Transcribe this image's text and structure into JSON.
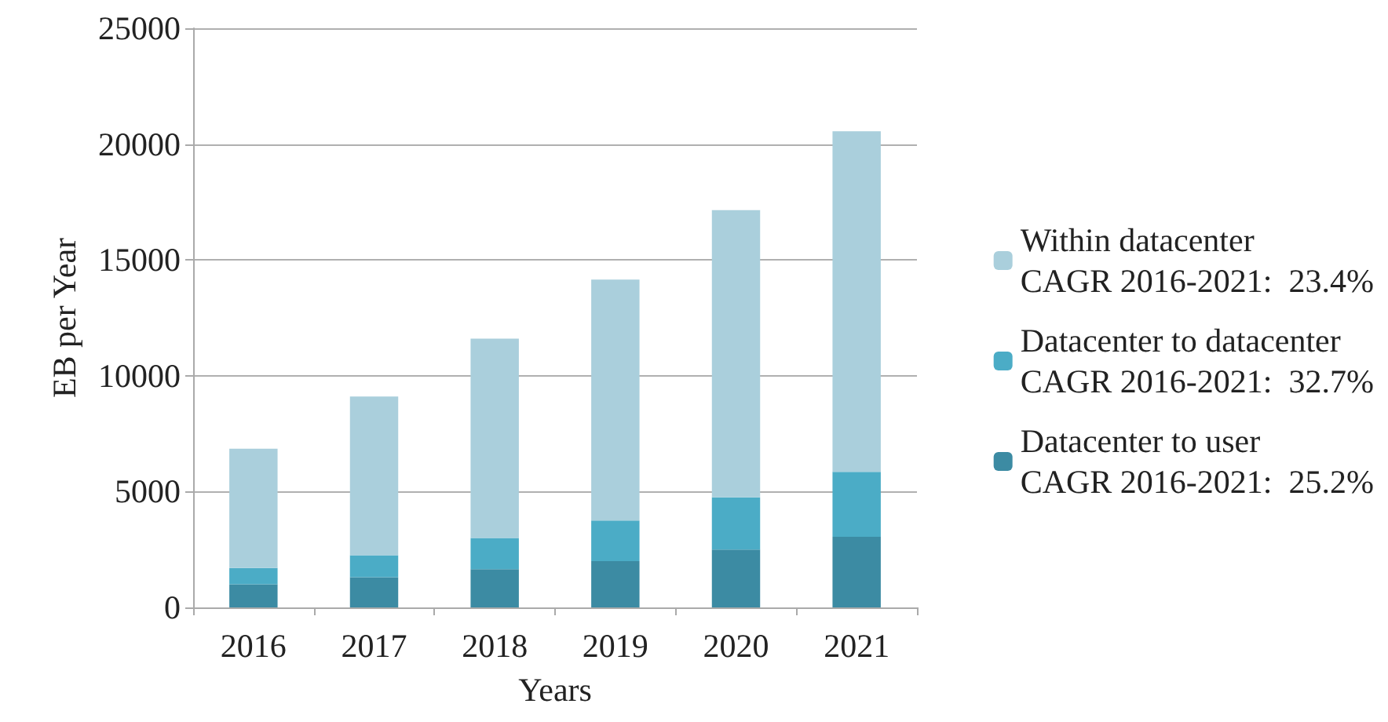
{
  "chart_data": {
    "type": "bar",
    "stacked": true,
    "xlabel": "Years",
    "ylabel": "EB per Year",
    "categories": [
      "2016",
      "2017",
      "2018",
      "2019",
      "2020",
      "2021"
    ],
    "series": [
      {
        "name": "Datacenter to user\nCAGR 2016-2021:  25.2%",
        "color": "#3c8ba3",
        "values": [
          1000,
          1300,
          1650,
          2000,
          2500,
          3050
        ]
      },
      {
        "name": "Datacenter to datacenter\nCAGR 2016-2021:  32.7%",
        "color": "#4bacc6",
        "values": [
          700,
          950,
          1350,
          1750,
          2250,
          2800
        ]
      },
      {
        "name": "Within datacenter\nCAGR 2016-2021:  23.4%",
        "color": "#aacfdc",
        "values": [
          5150,
          6850,
          8600,
          10400,
          12400,
          14700
        ]
      }
    ],
    "ylim": [
      0,
      25000
    ],
    "yticks": [
      0,
      5000,
      10000,
      15000,
      20000,
      25000
    ],
    "grid": "y",
    "legend": "right"
  }
}
